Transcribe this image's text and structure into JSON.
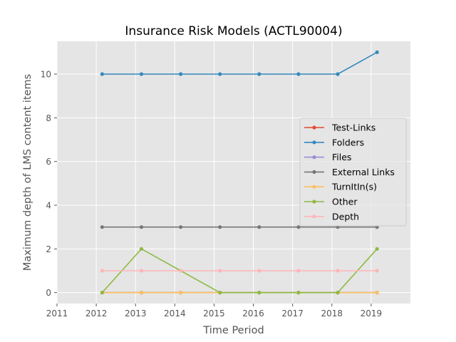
{
  "chart_data": {
    "type": "line",
    "title": "Insurance Risk Models (ACTL90004)",
    "xlabel": "Time Period",
    "ylabel": "Maximum depth of LMS content items",
    "xlim": [
      2011,
      2020
    ],
    "ylim": [
      -0.5,
      11.5
    ],
    "xticks": [
      2011,
      2012,
      2013,
      2014,
      2015,
      2016,
      2017,
      2018,
      2019
    ],
    "yticks": [
      0,
      2,
      4,
      6,
      8,
      10
    ],
    "grid": true,
    "legend_position": "center-right",
    "x": [
      2012.15,
      2013.15,
      2014.15,
      2015.15,
      2016.15,
      2017.15,
      2018.15,
      2019.15
    ],
    "series": [
      {
        "name": "Test-Links",
        "color": "#e24a33",
        "values": [
          0,
          0,
          0,
          0,
          0,
          0,
          0,
          0
        ]
      },
      {
        "name": "Folders",
        "color": "#348abd",
        "values": [
          10,
          10,
          10,
          10,
          10,
          10,
          10,
          11
        ]
      },
      {
        "name": "Files",
        "color": "#988ed5",
        "values": [
          0,
          0,
          0,
          0,
          0,
          0,
          0,
          0
        ]
      },
      {
        "name": "External Links",
        "color": "#777777",
        "values": [
          3,
          3,
          3,
          3,
          3,
          3,
          3,
          3
        ]
      },
      {
        "name": "TurnItIn(s)",
        "color": "#fbc15e",
        "values": [
          0,
          0,
          0,
          0,
          0,
          0,
          0,
          0
        ]
      },
      {
        "name": "Other",
        "color": "#8eba42",
        "values": [
          0,
          2,
          1,
          0,
          0,
          0,
          0,
          2
        ]
      },
      {
        "name": "Depth",
        "color": "#ffb5b8",
        "values": [
          1,
          1,
          1,
          1,
          1,
          1,
          1,
          1
        ]
      }
    ]
  }
}
